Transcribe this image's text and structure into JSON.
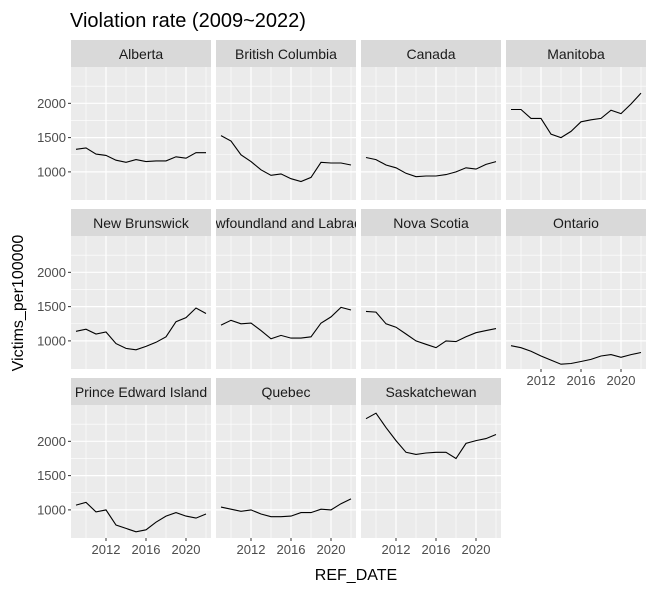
{
  "chart_data": {
    "type": "line",
    "layout": "facet-wrap",
    "title": "Violation rate (2009~2022)",
    "xlabel": "REF_DATE",
    "ylabel": "Victims_per100000",
    "xlim": [
      2008.5,
      2022.5
    ],
    "ylim": [
      590,
      2530
    ],
    "x_ticks": [
      2012,
      2016,
      2020
    ],
    "y_ticks": [
      1000,
      1500,
      2000
    ],
    "grid": true,
    "panel_background": "#ebebeb",
    "strip_background": "#d9d9d9",
    "grid_color": "#ffffff",
    "line_color": "#000000",
    "x": [
      2009,
      2010,
      2011,
      2012,
      2013,
      2014,
      2015,
      2016,
      2017,
      2018,
      2019,
      2020,
      2021,
      2022
    ],
    "series": [
      {
        "name": "Alberta",
        "values": [
          1330,
          1350,
          1260,
          1240,
          1170,
          1140,
          1180,
          1150,
          1160,
          1160,
          1220,
          1200,
          1280,
          1280
        ]
      },
      {
        "name": "British Columbia",
        "values": [
          1530,
          1450,
          1250,
          1150,
          1030,
          950,
          970,
          900,
          860,
          920,
          1140,
          1130,
          1130,
          1100
        ]
      },
      {
        "name": "Canada",
        "values": [
          1210,
          1180,
          1100,
          1060,
          980,
          930,
          940,
          940,
          960,
          1000,
          1060,
          1040,
          1110,
          1150
        ]
      },
      {
        "name": "Manitoba",
        "values": [
          1910,
          1910,
          1780,
          1780,
          1550,
          1500,
          1590,
          1730,
          1760,
          1780,
          1900,
          1850,
          1990,
          2150
        ]
      },
      {
        "name": "New Brunswick",
        "values": [
          1140,
          1170,
          1100,
          1130,
          960,
          890,
          870,
          920,
          980,
          1060,
          1280,
          1340,
          1480,
          1400
        ]
      },
      {
        "name": "Newfoundland and Labrador",
        "values": [
          1230,
          1300,
          1250,
          1260,
          1150,
          1030,
          1080,
          1040,
          1040,
          1060,
          1260,
          1350,
          1490,
          1450
        ]
      },
      {
        "name": "Nova Scotia",
        "values": [
          1430,
          1420,
          1250,
          1200,
          1100,
          1000,
          950,
          900,
          1000,
          990,
          1060,
          1120,
          1150,
          1180
        ]
      },
      {
        "name": "Ontario",
        "values": [
          930,
          900,
          850,
          780,
          720,
          660,
          670,
          700,
          730,
          780,
          800,
          760,
          800,
          830
        ]
      },
      {
        "name": "Prince Edward Island",
        "values": [
          1070,
          1110,
          970,
          1000,
          780,
          730,
          680,
          710,
          820,
          910,
          960,
          910,
          880,
          940
        ]
      },
      {
        "name": "Quebec",
        "values": [
          1040,
          1010,
          980,
          1000,
          940,
          900,
          900,
          910,
          960,
          960,
          1010,
          1000,
          1090,
          1160
        ]
      },
      {
        "name": "Saskatchewan",
        "values": [
          2330,
          2410,
          2200,
          2010,
          1840,
          1810,
          1830,
          1840,
          1840,
          1750,
          1970,
          2010,
          2040,
          2100
        ]
      }
    ]
  }
}
